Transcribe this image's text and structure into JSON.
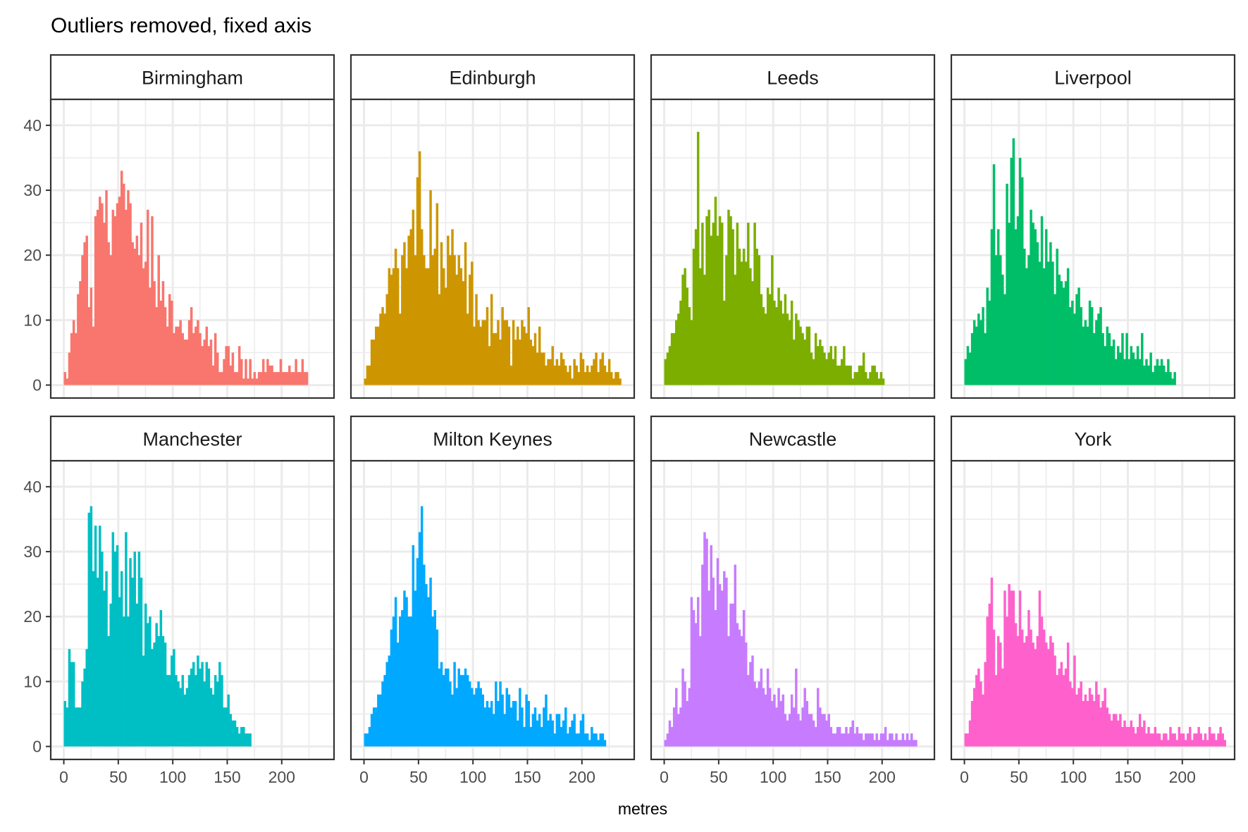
{
  "chart_data": {
    "type": "histogram",
    "title": "Outliers removed, fixed axis",
    "xlabel": "metres",
    "ylabel": "",
    "xlim": [
      -12,
      248
    ],
    "ylim": [
      -2,
      44
    ],
    "x_ticks": [
      0,
      50,
      100,
      150,
      200
    ],
    "y_ticks": [
      0,
      10,
      20,
      30,
      40
    ],
    "bin_width": 2,
    "layout": {
      "rows": 2,
      "cols": 4,
      "shared_axes": true
    },
    "panels": [
      {
        "name": "Birmingham",
        "color": "#F8766D",
        "bin_start": 0,
        "counts": [
          2,
          1,
          5,
          8,
          10,
          8,
          14,
          16,
          20,
          22,
          23,
          12,
          15,
          9,
          26,
          27,
          29,
          28,
          25,
          30,
          22,
          20,
          27,
          26,
          28,
          29,
          33,
          31,
          27,
          30,
          28,
          22,
          21,
          23,
          20,
          25,
          18,
          19,
          27,
          15,
          26,
          16,
          12,
          20,
          13,
          16,
          12,
          9,
          14,
          13,
          8,
          9,
          9,
          10,
          8,
          7,
          7,
          10,
          12,
          8,
          9,
          10,
          8,
          6,
          7,
          9,
          6,
          7,
          3,
          8,
          5,
          2,
          2,
          4,
          6,
          6,
          3,
          5,
          2,
          2,
          6,
          4,
          1,
          4,
          1,
          4,
          1,
          2,
          1,
          2,
          2,
          4,
          2,
          4,
          3,
          3,
          2,
          2,
          2,
          4,
          2,
          2,
          2,
          3,
          2,
          2,
          4,
          2,
          2,
          4,
          2,
          2
        ]
      },
      {
        "name": "Edinburgh",
        "color": "#CD9600",
        "bin_start": 0,
        "counts": [
          1,
          3,
          3,
          7,
          7,
          9,
          9,
          11,
          12,
          11,
          14,
          18,
          17,
          18,
          21,
          18,
          11,
          20,
          22,
          18,
          23,
          24,
          27,
          20,
          32,
          36,
          24,
          20,
          18,
          18,
          30,
          20,
          21,
          28,
          14,
          22,
          18,
          15,
          23,
          20,
          24,
          20,
          17,
          20,
          18,
          16,
          22,
          11,
          17,
          19,
          9,
          14,
          10,
          9,
          10,
          10,
          12,
          6,
          14,
          8,
          8,
          10,
          7,
          12,
          10,
          10,
          9,
          3,
          10,
          7,
          9,
          7,
          10,
          9,
          8,
          12,
          7,
          6,
          8,
          5,
          9,
          5,
          5,
          3,
          4,
          4,
          6,
          3,
          4,
          3,
          5,
          4,
          3,
          2,
          3,
          1,
          4,
          3,
          2,
          5,
          4,
          2,
          3,
          2,
          3,
          4,
          5,
          2,
          4,
          5,
          3,
          2,
          4,
          2,
          1,
          2,
          2,
          1
        ]
      },
      {
        "name": "Leeds",
        "color": "#7CAE00",
        "bin_start": 0,
        "counts": [
          4,
          5,
          6,
          8,
          8,
          10,
          11,
          13,
          17,
          18,
          15,
          12,
          10,
          21,
          24,
          39,
          18,
          25,
          17,
          26,
          27,
          23,
          25,
          29,
          23,
          26,
          25,
          13,
          20,
          27,
          26,
          24,
          17,
          25,
          21,
          19,
          21,
          19,
          25,
          18,
          16,
          25,
          21,
          20,
          14,
          12,
          11,
          15,
          14,
          20,
          13,
          12,
          15,
          13,
          11,
          14,
          11,
          10,
          13,
          7,
          11,
          10,
          9,
          8,
          7,
          9,
          9,
          5,
          4,
          8,
          6,
          7,
          6,
          5,
          4,
          5,
          6,
          4,
          6,
          3,
          3,
          4,
          6,
          3,
          3,
          3,
          1,
          2,
          2,
          3,
          3,
          5,
          2,
          1,
          2,
          3,
          3,
          2,
          1,
          2,
          1
        ]
      },
      {
        "name": "Liverpool",
        "color": "#00BE67",
        "bin_start": 0,
        "counts": [
          4,
          6,
          5,
          8,
          10,
          9,
          11,
          10,
          12,
          8,
          15,
          13,
          24,
          34,
          20,
          24,
          20,
          17,
          14,
          31,
          25,
          35,
          38,
          24,
          26,
          35,
          32,
          21,
          18,
          20,
          27,
          25,
          24,
          22,
          19,
          26,
          18,
          24,
          19,
          22,
          19,
          14,
          21,
          17,
          16,
          15,
          16,
          18,
          12,
          13,
          11,
          14,
          15,
          12,
          9,
          10,
          9,
          13,
          12,
          8,
          10,
          11,
          12,
          8,
          6,
          9,
          8,
          6,
          7,
          4,
          6,
          5,
          8,
          4,
          8,
          4,
          6,
          5,
          4,
          6,
          4,
          8,
          3,
          4,
          3,
          5,
          2,
          3,
          4,
          3,
          4,
          3,
          2,
          4,
          2,
          1,
          2
        ]
      },
      {
        "name": "Manchester",
        "color": "#00BFC4",
        "bin_start": 0,
        "counts": [
          7,
          6,
          15,
          13,
          13,
          6,
          6,
          6,
          10,
          12,
          15,
          36,
          37,
          27,
          34,
          26,
          34,
          30,
          24,
          27,
          17,
          22,
          33,
          30,
          31,
          23,
          27,
          20,
          33,
          20,
          29,
          26,
          30,
          22,
          30,
          26,
          14,
          22,
          19,
          20,
          15,
          16,
          19,
          17,
          21,
          17,
          16,
          11,
          11,
          14,
          15,
          11,
          10,
          9,
          11,
          8,
          9,
          11,
          12,
          13,
          11,
          14,
          12,
          13,
          10,
          13,
          12,
          9,
          8,
          11,
          10,
          13,
          11,
          6,
          6,
          8,
          5,
          4,
          4,
          3,
          2,
          3,
          3,
          2,
          2,
          2
        ]
      },
      {
        "name": "Milton Keynes",
        "color": "#00A9FF",
        "bin_start": 0,
        "counts": [
          2,
          2,
          3,
          5,
          6,
          6,
          8,
          8,
          10,
          11,
          13,
          14,
          18,
          20,
          23,
          16,
          20,
          21,
          24,
          23,
          20,
          20,
          31,
          24,
          29,
          33,
          37,
          28,
          25,
          23,
          26,
          20,
          21,
          18,
          12,
          13,
          11,
          12,
          12,
          10,
          8,
          13,
          9,
          12,
          11,
          11,
          12,
          11,
          10,
          9,
          8,
          9,
          10,
          9,
          8,
          6,
          7,
          6,
          7,
          5,
          10,
          7,
          10,
          8,
          5,
          9,
          8,
          6,
          7,
          7,
          4,
          9,
          6,
          3,
          8,
          7,
          3,
          5,
          6,
          4,
          5,
          3,
          6,
          8,
          4,
          5,
          4,
          2,
          5,
          5,
          3,
          4,
          6,
          2,
          3,
          4,
          5,
          2,
          2,
          4,
          5,
          2,
          2,
          1,
          3,
          2,
          2,
          1,
          2,
          2,
          1
        ]
      },
      {
        "name": "Newcastle",
        "color": "#C77CFF",
        "bin_start": 0,
        "counts": [
          1,
          2,
          4,
          3,
          6,
          9,
          5,
          6,
          12,
          10,
          7,
          9,
          23,
          21,
          19,
          23,
          17,
          28,
          33,
          32,
          24,
          31,
          26,
          21,
          29,
          25,
          24,
          27,
          26,
          17,
          22,
          22,
          28,
          19,
          18,
          17,
          21,
          16,
          11,
          13,
          14,
          10,
          9,
          10,
          12,
          9,
          8,
          12,
          9,
          7,
          8,
          6,
          9,
          7,
          8,
          5,
          4,
          5,
          8,
          6,
          12,
          5,
          4,
          6,
          9,
          7,
          5,
          5,
          4,
          3,
          9,
          6,
          5,
          5,
          4,
          5,
          3,
          2,
          2,
          3,
          3,
          2,
          2,
          3,
          2,
          3,
          4,
          2,
          3,
          2,
          2,
          1,
          2,
          2,
          2,
          2,
          1,
          2,
          1,
          2,
          2,
          3,
          1,
          2,
          2,
          1,
          2,
          1,
          1,
          2,
          1,
          2,
          1,
          2,
          1,
          1
        ]
      },
      {
        "name": "York",
        "color": "#FF61CC",
        "bin_start": 0,
        "counts": [
          2,
          2,
          4,
          7,
          9,
          11,
          12,
          10,
          8,
          13,
          20,
          22,
          26,
          18,
          11,
          17,
          16,
          12,
          24,
          20,
          25,
          24,
          24,
          19,
          17,
          24,
          18,
          16,
          17,
          21,
          18,
          16,
          15,
          17,
          24,
          20,
          18,
          16,
          15,
          17,
          16,
          14,
          11,
          12,
          13,
          11,
          12,
          16,
          10,
          9,
          14,
          8,
          9,
          10,
          7,
          8,
          7,
          9,
          8,
          7,
          10,
          8,
          6,
          7,
          9,
          6,
          5,
          4,
          5,
          5,
          4,
          5,
          3,
          4,
          3,
          3,
          4,
          3,
          2,
          3,
          5,
          3,
          4,
          2,
          3,
          2,
          2,
          3,
          2,
          2,
          1,
          2,
          2,
          1,
          3,
          2,
          2,
          1,
          3,
          2,
          2,
          1,
          2,
          3,
          1,
          2,
          2,
          3,
          2,
          1,
          2,
          1,
          3,
          2,
          2,
          1,
          2,
          3,
          2,
          1
        ]
      }
    ]
  }
}
